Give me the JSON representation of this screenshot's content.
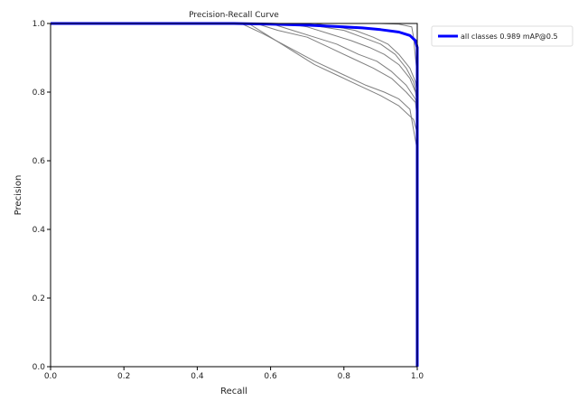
{
  "chart_data": {
    "type": "line",
    "title": "Precision-Recall Curve",
    "xlabel": "Recall",
    "ylabel": "Precision",
    "xlim": [
      0.0,
      1.0
    ],
    "ylim": [
      0.0,
      1.0
    ],
    "x_ticks": [
      0.0,
      0.2,
      0.4,
      0.6,
      0.8,
      1.0
    ],
    "y_ticks": [
      0.0,
      0.2,
      0.4,
      0.6,
      0.8,
      1.0
    ],
    "x_tick_labels": [
      "0.0",
      "0.2",
      "0.4",
      "0.6",
      "0.8",
      "1.0"
    ],
    "y_tick_labels": [
      "0.0",
      "0.2",
      "0.4",
      "0.6",
      "0.8",
      "1.0"
    ],
    "grid": false,
    "legend": {
      "position": "outside-top-right",
      "entries": [
        {
          "label": "all classes 0.989 mAP@0.5",
          "color": "#0000ff"
        }
      ]
    },
    "series": [
      {
        "name": "all classes 0.989 mAP@0.5",
        "color": "#0000ff",
        "line_width": 3,
        "points": [
          [
            0.0,
            1.0
          ],
          [
            0.5,
            1.0
          ],
          [
            0.6,
            0.998
          ],
          [
            0.7,
            0.995
          ],
          [
            0.8,
            0.99
          ],
          [
            0.85,
            0.987
          ],
          [
            0.9,
            0.982
          ],
          [
            0.95,
            0.975
          ],
          [
            0.98,
            0.965
          ],
          [
            0.995,
            0.95
          ],
          [
            1.0,
            0.93
          ],
          [
            1.0,
            0.0
          ]
        ]
      },
      {
        "color": "#7f7f7f",
        "line_width": 1,
        "points": [
          [
            0.0,
            1.0
          ],
          [
            0.52,
            1.0
          ],
          [
            0.58,
            0.97
          ],
          [
            0.65,
            0.93
          ],
          [
            0.72,
            0.89
          ],
          [
            0.8,
            0.85
          ],
          [
            0.86,
            0.82
          ],
          [
            0.91,
            0.8
          ],
          [
            0.95,
            0.78
          ],
          [
            0.98,
            0.75
          ],
          [
            1.0,
            0.63
          ],
          [
            1.0,
            0.0
          ]
        ]
      },
      {
        "color": "#7f7f7f",
        "line_width": 1,
        "points": [
          [
            0.0,
            1.0
          ],
          [
            0.54,
            1.0
          ],
          [
            0.6,
            0.96
          ],
          [
            0.66,
            0.92
          ],
          [
            0.72,
            0.88
          ],
          [
            0.78,
            0.85
          ],
          [
            0.84,
            0.82
          ],
          [
            0.9,
            0.79
          ],
          [
            0.95,
            0.76
          ],
          [
            0.99,
            0.72
          ],
          [
            1.0,
            0.68
          ],
          [
            1.0,
            0.0
          ]
        ]
      },
      {
        "color": "#7f7f7f",
        "line_width": 1,
        "points": [
          [
            0.0,
            1.0
          ],
          [
            0.56,
            1.0
          ],
          [
            0.62,
            0.98
          ],
          [
            0.7,
            0.96
          ],
          [
            0.76,
            0.93
          ],
          [
            0.82,
            0.9
          ],
          [
            0.88,
            0.87
          ],
          [
            0.93,
            0.84
          ],
          [
            0.97,
            0.8
          ],
          [
            0.995,
            0.77
          ],
          [
            1.0,
            0.72
          ]
        ]
      },
      {
        "color": "#7f7f7f",
        "line_width": 1,
        "points": [
          [
            0.0,
            1.0
          ],
          [
            0.6,
            1.0
          ],
          [
            0.66,
            0.98
          ],
          [
            0.72,
            0.96
          ],
          [
            0.78,
            0.94
          ],
          [
            0.84,
            0.91
          ],
          [
            0.89,
            0.89
          ],
          [
            0.93,
            0.86
          ],
          [
            0.97,
            0.82
          ],
          [
            0.995,
            0.78
          ],
          [
            1.0,
            0.74
          ]
        ]
      },
      {
        "color": "#7f7f7f",
        "line_width": 1,
        "points": [
          [
            0.0,
            1.0
          ],
          [
            0.64,
            1.0
          ],
          [
            0.7,
            0.99
          ],
          [
            0.76,
            0.97
          ],
          [
            0.82,
            0.95
          ],
          [
            0.87,
            0.93
          ],
          [
            0.91,
            0.91
          ],
          [
            0.95,
            0.88
          ],
          [
            0.98,
            0.84
          ],
          [
            0.995,
            0.8
          ],
          [
            1.0,
            0.76
          ]
        ]
      },
      {
        "color": "#7f7f7f",
        "line_width": 1,
        "points": [
          [
            0.0,
            1.0
          ],
          [
            0.68,
            1.0
          ],
          [
            0.74,
            0.99
          ],
          [
            0.8,
            0.98
          ],
          [
            0.85,
            0.96
          ],
          [
            0.9,
            0.94
          ],
          [
            0.94,
            0.91
          ],
          [
            0.97,
            0.87
          ],
          [
            0.99,
            0.83
          ],
          [
            1.0,
            0.78
          ]
        ]
      },
      {
        "color": "#7f7f7f",
        "line_width": 1,
        "points": [
          [
            0.0,
            1.0
          ],
          [
            0.72,
            1.0
          ],
          [
            0.78,
            0.99
          ],
          [
            0.83,
            0.98
          ],
          [
            0.88,
            0.96
          ],
          [
            0.92,
            0.94
          ],
          [
            0.95,
            0.91
          ],
          [
            0.98,
            0.87
          ],
          [
            0.995,
            0.83
          ],
          [
            1.0,
            0.79
          ]
        ]
      },
      {
        "color": "#7f7f7f",
        "line_width": 1,
        "points": [
          [
            0.0,
            1.0
          ],
          [
            0.9,
            1.0
          ],
          [
            0.95,
            0.998
          ],
          [
            0.985,
            0.99
          ],
          [
            0.99,
            0.96
          ],
          [
            0.995,
            0.9
          ],
          [
            1.0,
            0.85
          ],
          [
            1.0,
            0.0
          ]
        ]
      }
    ]
  }
}
